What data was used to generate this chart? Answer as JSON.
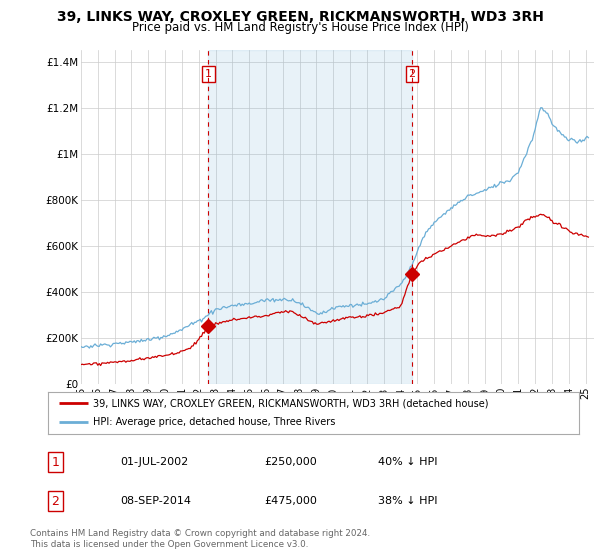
{
  "title": "39, LINKS WAY, CROXLEY GREEN, RICKMANSWORTH, WD3 3RH",
  "subtitle": "Price paid vs. HM Land Registry's House Price Index (HPI)",
  "ylabel_ticks": [
    "£0",
    "£200K",
    "£400K",
    "£600K",
    "£800K",
    "£1M",
    "£1.2M",
    "£1.4M"
  ],
  "ylim": [
    0,
    1450000
  ],
  "xlim_start": 1995.0,
  "xlim_end": 2025.5,
  "transaction1_date": 2002.58,
  "transaction1_price": 250000,
  "transaction1_label": "1",
  "transaction2_date": 2014.67,
  "transaction2_price": 475000,
  "transaction2_label": "2",
  "hpi_color": "#6baed6",
  "price_color": "#cc0000",
  "vline_color": "#cc0000",
  "fill_color": "#ddeeff",
  "grid_color": "#cccccc",
  "legend_label_price": "39, LINKS WAY, CROXLEY GREEN, RICKMANSWORTH, WD3 3RH (detached house)",
  "legend_label_hpi": "HPI: Average price, detached house, Three Rivers",
  "table_rows": [
    [
      "1",
      "01-JUL-2002",
      "£250,000",
      "40% ↓ HPI"
    ],
    [
      "2",
      "08-SEP-2014",
      "£475,000",
      "38% ↓ HPI"
    ]
  ],
  "footer": "Contains HM Land Registry data © Crown copyright and database right 2024.\nThis data is licensed under the Open Government Licence v3.0.",
  "background_color": "#ffffff"
}
